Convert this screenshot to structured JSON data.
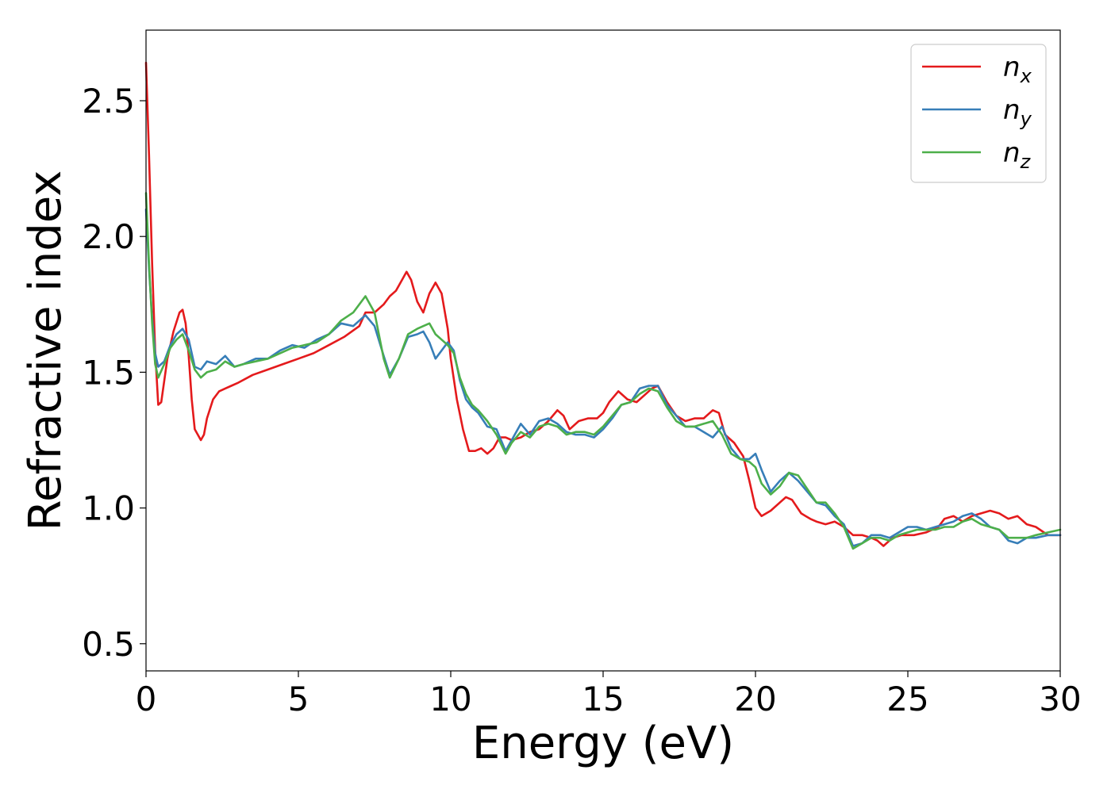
{
  "chart_data": {
    "type": "line",
    "xlabel": "Energy (eV)",
    "ylabel": "Refractive index",
    "xlim": [
      0,
      30
    ],
    "ylim": [
      0.4,
      2.76
    ],
    "xticks": [
      0,
      5,
      10,
      15,
      20,
      25,
      30
    ],
    "xtick_labels": [
      "0",
      "5",
      "10",
      "15",
      "20",
      "25",
      "30"
    ],
    "yticks": [
      0.5,
      1.0,
      1.5,
      2.0,
      2.5
    ],
    "ytick_labels": [
      "0.5",
      "1.0",
      "1.5",
      "2.0",
      "2.5"
    ],
    "grid": false,
    "legend_position": "top-right",
    "series": [
      {
        "name": "n",
        "subscript": "x",
        "color": "#e41a1c",
        "x": [
          0.0,
          0.1,
          0.2,
          0.3,
          0.4,
          0.5,
          0.7,
          0.9,
          1.1,
          1.2,
          1.3,
          1.4,
          1.5,
          1.6,
          1.8,
          1.9,
          2.0,
          2.2,
          2.4,
          2.6,
          2.8,
          3.0,
          3.5,
          4.0,
          4.5,
          5.0,
          5.5,
          6.0,
          6.5,
          7.0,
          7.2,
          7.5,
          7.8,
          8.0,
          8.2,
          8.4,
          8.55,
          8.7,
          8.9,
          9.1,
          9.3,
          9.5,
          9.7,
          9.9,
          10.0,
          10.2,
          10.4,
          10.6,
          10.8,
          11.0,
          11.2,
          11.4,
          11.6,
          11.8,
          12.0,
          12.3,
          12.6,
          12.9,
          13.2,
          13.5,
          13.7,
          13.9,
          14.2,
          14.5,
          14.8,
          15.0,
          15.2,
          15.5,
          15.8,
          16.1,
          16.4,
          16.6,
          16.8,
          17.1,
          17.4,
          17.7,
          18.0,
          18.3,
          18.6,
          18.8,
          19.0,
          19.3,
          19.6,
          19.8,
          20.0,
          20.2,
          20.5,
          20.8,
          21.0,
          21.2,
          21.5,
          21.8,
          22.0,
          22.3,
          22.6,
          22.9,
          23.2,
          23.5,
          23.8,
          24.0,
          24.2,
          24.5,
          24.8,
          25.2,
          25.6,
          26.0,
          26.2,
          26.5,
          26.8,
          27.1,
          27.4,
          27.7,
          28.0,
          28.3,
          28.6,
          28.9,
          29.2,
          29.6,
          30.0
        ],
        "values": [
          2.64,
          2.3,
          1.9,
          1.58,
          1.38,
          1.39,
          1.55,
          1.65,
          1.72,
          1.73,
          1.68,
          1.56,
          1.4,
          1.29,
          1.25,
          1.27,
          1.33,
          1.4,
          1.43,
          1.44,
          1.45,
          1.46,
          1.49,
          1.51,
          1.53,
          1.55,
          1.57,
          1.6,
          1.63,
          1.67,
          1.72,
          1.72,
          1.75,
          1.78,
          1.8,
          1.84,
          1.87,
          1.84,
          1.76,
          1.72,
          1.79,
          1.83,
          1.79,
          1.66,
          1.55,
          1.4,
          1.29,
          1.21,
          1.21,
          1.22,
          1.2,
          1.22,
          1.26,
          1.26,
          1.25,
          1.26,
          1.28,
          1.29,
          1.32,
          1.36,
          1.34,
          1.29,
          1.32,
          1.33,
          1.33,
          1.35,
          1.39,
          1.43,
          1.4,
          1.39,
          1.42,
          1.44,
          1.45,
          1.39,
          1.34,
          1.32,
          1.33,
          1.33,
          1.36,
          1.35,
          1.27,
          1.24,
          1.19,
          1.1,
          1.0,
          0.97,
          0.99,
          1.02,
          1.04,
          1.03,
          0.98,
          0.96,
          0.95,
          0.94,
          0.95,
          0.93,
          0.9,
          0.9,
          0.89,
          0.88,
          0.86,
          0.89,
          0.9,
          0.9,
          0.91,
          0.93,
          0.96,
          0.97,
          0.95,
          0.97,
          0.98,
          0.99,
          0.98,
          0.96,
          0.97,
          0.94,
          0.93,
          0.9,
          0.9
        ]
      },
      {
        "name": "n",
        "subscript": "y",
        "color": "#377eb8",
        "x": [
          0.0,
          0.1,
          0.2,
          0.3,
          0.4,
          0.6,
          0.8,
          1.0,
          1.2,
          1.4,
          1.6,
          1.8,
          2.0,
          2.3,
          2.6,
          2.9,
          3.2,
          3.6,
          4.0,
          4.4,
          4.8,
          5.2,
          5.6,
          6.0,
          6.4,
          6.8,
          7.2,
          7.5,
          7.8,
          8.0,
          8.3,
          8.6,
          8.9,
          9.1,
          9.3,
          9.5,
          9.7,
          9.9,
          10.1,
          10.3,
          10.5,
          10.7,
          10.9,
          11.2,
          11.5,
          11.8,
          12.0,
          12.3,
          12.6,
          12.9,
          13.2,
          13.5,
          13.8,
          14.1,
          14.4,
          14.7,
          15.0,
          15.3,
          15.6,
          15.9,
          16.2,
          16.5,
          16.8,
          17.1,
          17.4,
          17.7,
          18.0,
          18.3,
          18.6,
          18.9,
          19.2,
          19.5,
          19.8,
          20.0,
          20.2,
          20.5,
          20.8,
          21.1,
          21.4,
          21.7,
          22.0,
          22.3,
          22.6,
          22.9,
          23.2,
          23.5,
          23.8,
          24.1,
          24.4,
          24.7,
          25.0,
          25.3,
          25.6,
          25.9,
          26.2,
          26.5,
          26.8,
          27.1,
          27.4,
          27.7,
          28.0,
          28.3,
          28.6,
          28.9,
          29.2,
          29.6,
          30.0
        ],
        "values": [
          2.1,
          1.88,
          1.7,
          1.57,
          1.52,
          1.54,
          1.6,
          1.64,
          1.66,
          1.62,
          1.52,
          1.51,
          1.54,
          1.53,
          1.56,
          1.52,
          1.53,
          1.55,
          1.55,
          1.58,
          1.6,
          1.59,
          1.62,
          1.64,
          1.68,
          1.67,
          1.71,
          1.67,
          1.56,
          1.49,
          1.55,
          1.63,
          1.64,
          1.65,
          1.61,
          1.55,
          1.58,
          1.61,
          1.58,
          1.47,
          1.4,
          1.37,
          1.35,
          1.3,
          1.29,
          1.21,
          1.25,
          1.31,
          1.27,
          1.32,
          1.33,
          1.31,
          1.28,
          1.27,
          1.27,
          1.26,
          1.29,
          1.33,
          1.38,
          1.39,
          1.44,
          1.45,
          1.45,
          1.38,
          1.34,
          1.3,
          1.3,
          1.28,
          1.26,
          1.3,
          1.22,
          1.18,
          1.18,
          1.2,
          1.14,
          1.06,
          1.1,
          1.13,
          1.1,
          1.06,
          1.02,
          1.01,
          0.97,
          0.94,
          0.86,
          0.87,
          0.9,
          0.9,
          0.89,
          0.91,
          0.93,
          0.93,
          0.92,
          0.93,
          0.94,
          0.95,
          0.97,
          0.98,
          0.96,
          0.93,
          0.92,
          0.88,
          0.87,
          0.89,
          0.89,
          0.9,
          0.9
        ]
      },
      {
        "name": "n",
        "subscript": "z",
        "color": "#4daf4a",
        "x": [
          0.0,
          0.1,
          0.2,
          0.3,
          0.4,
          0.6,
          0.8,
          1.0,
          1.2,
          1.4,
          1.6,
          1.8,
          2.0,
          2.3,
          2.6,
          2.9,
          3.2,
          3.6,
          4.0,
          4.4,
          4.8,
          5.2,
          5.6,
          6.0,
          6.4,
          6.8,
          7.2,
          7.5,
          7.8,
          8.0,
          8.3,
          8.6,
          8.9,
          9.1,
          9.3,
          9.5,
          9.7,
          9.9,
          10.1,
          10.3,
          10.5,
          10.7,
          10.9,
          11.2,
          11.5,
          11.8,
          12.0,
          12.3,
          12.6,
          12.9,
          13.2,
          13.5,
          13.8,
          14.1,
          14.4,
          14.7,
          15.0,
          15.3,
          15.6,
          15.9,
          16.2,
          16.5,
          16.8,
          17.1,
          17.4,
          17.7,
          18.0,
          18.3,
          18.6,
          18.9,
          19.2,
          19.5,
          19.8,
          20.0,
          20.2,
          20.5,
          20.8,
          21.1,
          21.4,
          21.7,
          22.0,
          22.3,
          22.6,
          22.9,
          23.2,
          23.5,
          23.8,
          24.1,
          24.4,
          24.7,
          25.0,
          25.3,
          25.6,
          25.9,
          26.2,
          26.5,
          26.8,
          27.1,
          27.4,
          27.7,
          28.0,
          28.3,
          28.6,
          28.9,
          29.2,
          29.6,
          30.0
        ],
        "values": [
          2.16,
          1.9,
          1.68,
          1.53,
          1.48,
          1.53,
          1.59,
          1.62,
          1.64,
          1.58,
          1.51,
          1.48,
          1.5,
          1.51,
          1.54,
          1.52,
          1.53,
          1.54,
          1.55,
          1.57,
          1.59,
          1.6,
          1.61,
          1.64,
          1.69,
          1.72,
          1.78,
          1.72,
          1.55,
          1.48,
          1.55,
          1.64,
          1.66,
          1.67,
          1.68,
          1.64,
          1.62,
          1.6,
          1.57,
          1.48,
          1.42,
          1.38,
          1.36,
          1.32,
          1.27,
          1.2,
          1.24,
          1.28,
          1.26,
          1.3,
          1.31,
          1.3,
          1.27,
          1.28,
          1.28,
          1.27,
          1.3,
          1.34,
          1.38,
          1.39,
          1.42,
          1.44,
          1.43,
          1.37,
          1.32,
          1.3,
          1.3,
          1.31,
          1.32,
          1.27,
          1.2,
          1.18,
          1.17,
          1.15,
          1.09,
          1.05,
          1.08,
          1.13,
          1.12,
          1.07,
          1.02,
          1.02,
          0.98,
          0.93,
          0.85,
          0.87,
          0.89,
          0.89,
          0.88,
          0.9,
          0.91,
          0.92,
          0.92,
          0.92,
          0.93,
          0.93,
          0.95,
          0.96,
          0.94,
          0.93,
          0.92,
          0.89,
          0.89,
          0.89,
          0.9,
          0.91,
          0.92
        ]
      }
    ]
  }
}
